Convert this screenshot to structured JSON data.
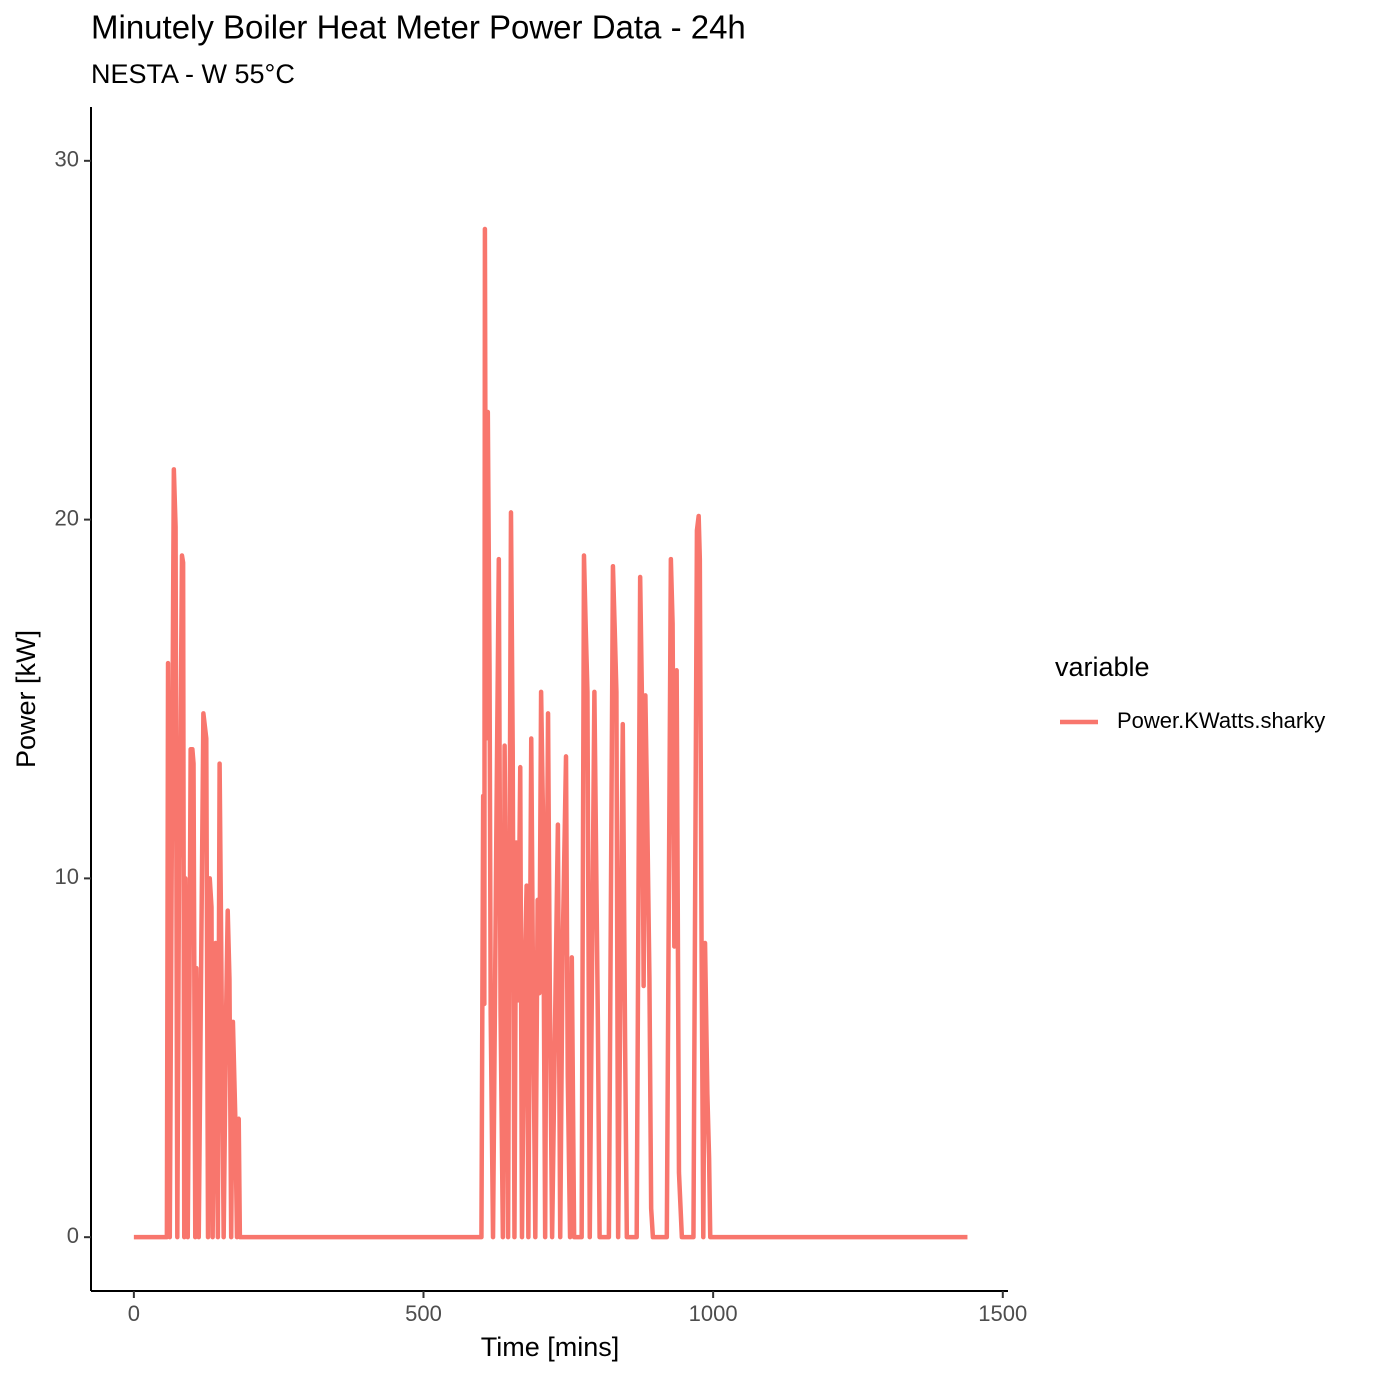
{
  "chart_data": {
    "type": "line",
    "title": "Minutely Boiler Heat Meter Power Data - 24h",
    "subtitle": "NESTA - W 55°C",
    "x_label": "Time [mins]",
    "y_label": "Power [kW]",
    "legend_title": "variable",
    "legend_position": "right",
    "grid": false,
    "xlim": [
      -74,
      1509
    ],
    "ylim": [
      -1.5,
      31.5
    ],
    "xticks": [
      0,
      500,
      1000,
      1500
    ],
    "yticks": [
      0,
      10,
      20,
      30
    ],
    "x": [
      0,
      57,
      59,
      62,
      66,
      69,
      72,
      75,
      78,
      80,
      83,
      85,
      87,
      89,
      93,
      96,
      98,
      101,
      103,
      106,
      108,
      112,
      116,
      120,
      125,
      128,
      131,
      134,
      136,
      139,
      141,
      145,
      148,
      151,
      155,
      159,
      162,
      165,
      168,
      171,
      175,
      178,
      181,
      183,
      600,
      603,
      605,
      606,
      608,
      611,
      614,
      616,
      620,
      626,
      630,
      633,
      637,
      640,
      643,
      646,
      651,
      654,
      657,
      660,
      663,
      667,
      670,
      674,
      678,
      681,
      686,
      689,
      693,
      697,
      700,
      703,
      706,
      710,
      712,
      715,
      718,
      722,
      728,
      732,
      736,
      740,
      746,
      749,
      753,
      756,
      760,
      773,
      777,
      780,
      783,
      787,
      795,
      801,
      804,
      820,
      827,
      830,
      833,
      836,
      844,
      848,
      851,
      868,
      874,
      877,
      880,
      883,
      886,
      890,
      893,
      896,
      920,
      927,
      930,
      933,
      937,
      941,
      946,
      966,
      972,
      975,
      977,
      980,
      983,
      986,
      990,
      993,
      995,
      1439
    ],
    "series": [
      {
        "name": "Power.KWatts.sharky",
        "color": "#f8766d",
        "values": [
          0,
          0,
          16,
          0,
          12.5,
          21.4,
          19.8,
          0,
          10.5,
          12.5,
          19,
          18.8,
          0,
          10,
          0,
          7,
          13.6,
          13.6,
          13.2,
          0,
          7.5,
          0,
          7.3,
          14.6,
          13.9,
          0,
          10,
          9.2,
          0,
          6,
          8.2,
          0,
          13.2,
          7.7,
          0,
          6,
          9.1,
          7.2,
          0,
          6,
          3.4,
          0,
          3.3,
          0,
          0,
          12.3,
          6.5,
          28.1,
          13.9,
          23,
          15.8,
          6.2,
          0,
          11.8,
          18.9,
          6.3,
          0,
          13.7,
          6.8,
          0,
          20.2,
          13.5,
          0,
          11,
          6.6,
          13.1,
          0,
          6.9,
          9.8,
          0,
          13.9,
          7.1,
          0,
          9.4,
          6.8,
          15.2,
          12,
          0,
          7.4,
          14.6,
          7,
          0,
          7,
          11.5,
          0,
          7.8,
          13.4,
          4.5,
          0,
          7.8,
          0,
          0,
          19,
          17,
          15.2,
          0,
          15.2,
          6,
          0,
          0,
          18.7,
          17,
          15.2,
          0,
          14.3,
          5.4,
          0,
          0,
          18.4,
          15.1,
          7,
          15.1,
          12,
          7.2,
          0.8,
          0,
          0,
          18.9,
          17.1,
          8.1,
          15.8,
          1.8,
          0,
          0,
          19.7,
          20.1,
          18.9,
          8.2,
          0,
          8.2,
          4,
          2.2,
          0,
          0
        ]
      }
    ]
  }
}
